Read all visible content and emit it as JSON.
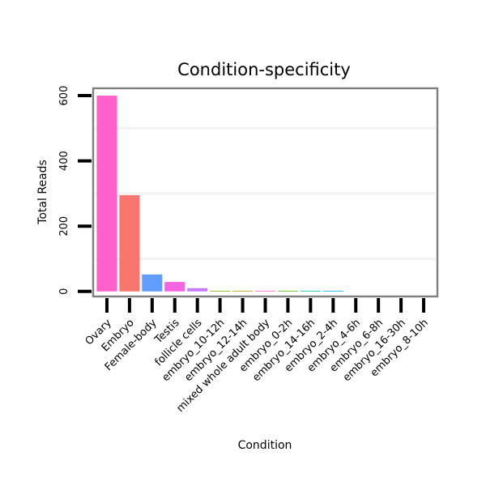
{
  "chart_data": {
    "type": "bar",
    "title": "Condition-specificity",
    "xlabel": "Condition",
    "ylabel": "Total Reads",
    "categories": [
      "Ovary",
      "Embryo",
      "Female-body",
      "Testis",
      "follicle cells",
      "embryo_10-12h",
      "embryo_12-14h",
      "mixed whole adult body",
      "embryo_0-2h",
      "embryo_14-16h",
      "embryo_2-4h",
      "embryo_4-6h",
      "embryo_6-8h",
      "embryo_16-30h",
      "embryo_8-10h"
    ],
    "values": [
      600,
      295,
      52,
      29,
      10,
      2,
      2,
      2,
      2,
      2,
      2,
      0,
      0,
      0,
      0
    ],
    "colors": [
      "#FF61CC",
      "#F8766D",
      "#619CFF",
      "#F564E3",
      "#C77CFF",
      "#7CAE00",
      "#C49A00",
      "#FF61C3",
      "#53B400",
      "#00C094",
      "#00B6EB",
      "#A58AFF",
      "#00A9FF",
      "#DE8C00",
      "#00BFC4"
    ],
    "ylim": [
      -8,
      620
    ],
    "y_ticks": [
      0,
      200,
      400,
      600
    ],
    "y_gridlines": [
      100,
      300,
      500
    ],
    "grid": true,
    "legend": "none"
  }
}
